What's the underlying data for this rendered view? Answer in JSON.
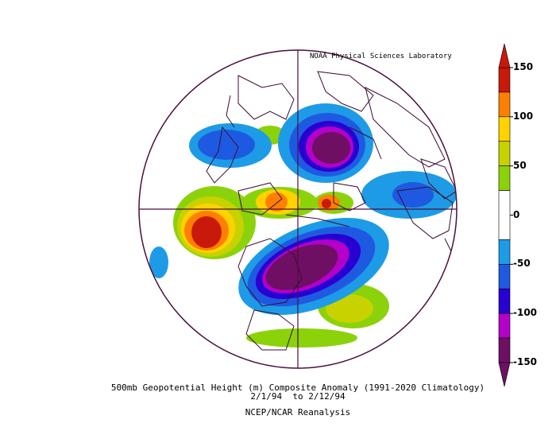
{
  "credit": "NOAA Physical Sciences Laboratory",
  "caption": {
    "line1": "500mb Geopotential Height (m) Composite Anomaly (1991-2020 Climatology)",
    "line2": "2/1/94  to 2/12/94",
    "line3": "NCEP/NCAR Reanalysis"
  },
  "colorbar": {
    "labels": [
      "150",
      "100",
      "50",
      "0",
      "-50",
      "-100",
      "-150"
    ],
    "bins": [
      {
        "from": 125,
        "to": 150,
        "color": "#c8190a"
      },
      {
        "from": 100,
        "to": 125,
        "color": "#ff7f00"
      },
      {
        "from": 75,
        "to": 100,
        "color": "#ffd200"
      },
      {
        "from": 50,
        "to": 75,
        "color": "#c8d200"
      },
      {
        "from": 25,
        "to": 50,
        "color": "#8cd20a"
      },
      {
        "from": -25,
        "to": 25,
        "color": "#ffffff"
      },
      {
        "from": -50,
        "to": -25,
        "color": "#1e9be6"
      },
      {
        "from": -75,
        "to": -50,
        "color": "#1e5ae1"
      },
      {
        "from": -100,
        "to": -75,
        "color": "#2800d2"
      },
      {
        "from": -125,
        "to": -100,
        "color": "#b400c8"
      },
      {
        "from": -150,
        "to": -125,
        "color": "#6e0f64"
      }
    ]
  },
  "colors": {
    "outline": "#4a0f3c",
    "coast": "#3c0a32"
  }
}
